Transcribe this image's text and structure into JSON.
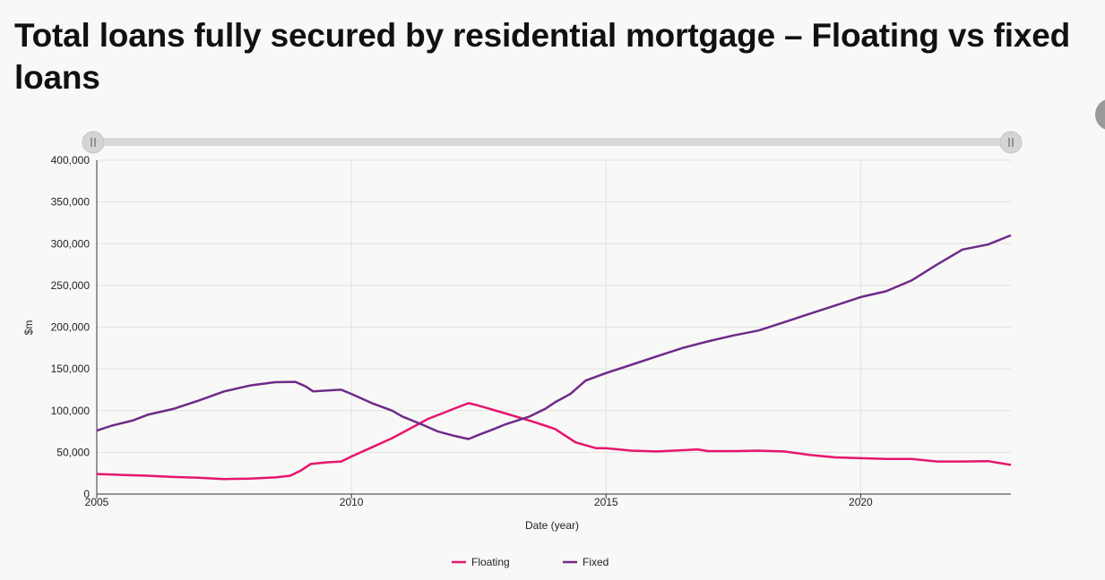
{
  "title": "Total loans fully secured by residential mortgage – Floating vs fixed loans",
  "colors": {
    "floating": "#e6156e",
    "fixed": "#6f2a8a",
    "grid": "#e2e2e2",
    "slider": "#d9d9d9"
  },
  "slider": {
    "handle_icon": "grip-icon"
  },
  "chart_data": {
    "type": "line",
    "title": "",
    "xlabel": "Date (year)",
    "ylabel": "$m",
    "xlim": [
      2005,
      2022.95
    ],
    "ylim": [
      0,
      400000
    ],
    "x_ticks": [
      "2005",
      "2010",
      "2015",
      "2020"
    ],
    "y_ticks": [
      "0",
      "50,000",
      "100,000",
      "150,000",
      "200,000",
      "250,000",
      "300,000",
      "350,000",
      "400,000"
    ],
    "grid": true,
    "legend_position": "bottom-center",
    "series": [
      {
        "name": "Floating",
        "color": "#e6156e",
        "points": [
          [
            2005.0,
            24000
          ],
          [
            2005.5,
            23000
          ],
          [
            2006.0,
            22000
          ],
          [
            2006.5,
            20500
          ],
          [
            2007.0,
            19500
          ],
          [
            2007.5,
            18000
          ],
          [
            2008.0,
            18500
          ],
          [
            2008.5,
            20000
          ],
          [
            2008.8,
            22000
          ],
          [
            2009.0,
            28000
          ],
          [
            2009.2,
            36000
          ],
          [
            2009.5,
            38000
          ],
          [
            2009.8,
            39000
          ],
          [
            2010.0,
            45000
          ],
          [
            2010.4,
            56000
          ],
          [
            2010.8,
            67000
          ],
          [
            2011.2,
            80000
          ],
          [
            2011.5,
            90000
          ],
          [
            2011.8,
            97000
          ],
          [
            2012.0,
            102000
          ],
          [
            2012.3,
            109000
          ],
          [
            2012.5,
            106000
          ],
          [
            2013.0,
            97000
          ],
          [
            2013.5,
            88000
          ],
          [
            2013.8,
            82000
          ],
          [
            2014.0,
            78000
          ],
          [
            2014.4,
            62000
          ],
          [
            2014.8,
            55000
          ],
          [
            2015.0,
            55000
          ],
          [
            2015.5,
            52000
          ],
          [
            2016.0,
            51000
          ],
          [
            2016.5,
            52500
          ],
          [
            2016.8,
            53500
          ],
          [
            2017.0,
            51500
          ],
          [
            2017.5,
            51500
          ],
          [
            2018.0,
            52000
          ],
          [
            2018.5,
            51000
          ],
          [
            2019.0,
            47000
          ],
          [
            2019.5,
            44000
          ],
          [
            2020.0,
            43000
          ],
          [
            2020.5,
            42000
          ],
          [
            2021.0,
            42000
          ],
          [
            2021.5,
            39000
          ],
          [
            2022.0,
            39000
          ],
          [
            2022.5,
            39500
          ],
          [
            2022.95,
            35000
          ]
        ]
      },
      {
        "name": "Fixed",
        "color": "#6f2a8a",
        "points": [
          [
            2005.0,
            76000
          ],
          [
            2005.3,
            82000
          ],
          [
            2005.7,
            88000
          ],
          [
            2006.0,
            95000
          ],
          [
            2006.5,
            102000
          ],
          [
            2007.0,
            112000
          ],
          [
            2007.5,
            123000
          ],
          [
            2008.0,
            130000
          ],
          [
            2008.5,
            134000
          ],
          [
            2008.9,
            134500
          ],
          [
            2009.1,
            129000
          ],
          [
            2009.25,
            123000
          ],
          [
            2009.5,
            124000
          ],
          [
            2009.8,
            125000
          ],
          [
            2010.0,
            120000
          ],
          [
            2010.4,
            109000
          ],
          [
            2010.8,
            100000
          ],
          [
            2011.0,
            93000
          ],
          [
            2011.4,
            83000
          ],
          [
            2011.7,
            75000
          ],
          [
            2012.0,
            70000
          ],
          [
            2012.3,
            66000
          ],
          [
            2012.5,
            71000
          ],
          [
            2012.8,
            78000
          ],
          [
            2013.0,
            83000
          ],
          [
            2013.5,
            93000
          ],
          [
            2013.8,
            102000
          ],
          [
            2014.0,
            110000
          ],
          [
            2014.3,
            120000
          ],
          [
            2014.6,
            136000
          ],
          [
            2015.0,
            145000
          ],
          [
            2015.5,
            155000
          ],
          [
            2016.0,
            165000
          ],
          [
            2016.5,
            175000
          ],
          [
            2017.0,
            183000
          ],
          [
            2017.5,
            190000
          ],
          [
            2018.0,
            196000
          ],
          [
            2018.5,
            206000
          ],
          [
            2019.0,
            216000
          ],
          [
            2019.5,
            226000
          ],
          [
            2020.0,
            236000
          ],
          [
            2020.5,
            243000
          ],
          [
            2021.0,
            256000
          ],
          [
            2021.5,
            275000
          ],
          [
            2022.0,
            293000
          ],
          [
            2022.5,
            299000
          ],
          [
            2022.95,
            310000
          ]
        ]
      }
    ]
  }
}
